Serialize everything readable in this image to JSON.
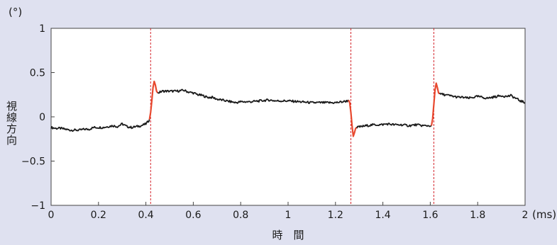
{
  "chart_data": {
    "type": "line",
    "title": "",
    "xlabel": "時　間",
    "ylabel": "視線方向",
    "y_unit": "(°)",
    "x_unit": "(ms)",
    "xlim": [
      0,
      2
    ],
    "ylim": [
      -1,
      1
    ],
    "x_ticks": [
      {
        "v": 0,
        "t": "0"
      },
      {
        "v": 0.2,
        "t": "0.2"
      },
      {
        "v": 0.4,
        "t": "0.4"
      },
      {
        "v": 0.6,
        "t": "0.6"
      },
      {
        "v": 0.8,
        "t": "0.8"
      },
      {
        "v": 1,
        "t": "1"
      },
      {
        "v": 1.2,
        "t": "1.2"
      },
      {
        "v": 1.4,
        "t": "1.4"
      },
      {
        "v": 1.6,
        "t": "1.6"
      },
      {
        "v": 1.8,
        "t": "1.8"
      },
      {
        "v": 2,
        "t": "2"
      }
    ],
    "y_ticks": [
      {
        "v": 1,
        "t": "1"
      },
      {
        "v": 0.5,
        "t": "0.5"
      },
      {
        "v": 0,
        "t": "0"
      },
      {
        "v": -0.5,
        "t": "−0.5"
      },
      {
        "v": -1,
        "t": "−1"
      }
    ],
    "grid": false,
    "markers": [
      0.42,
      1.265,
      1.615
    ],
    "colors": {
      "trace": "#1a1a1a",
      "saccade": "#e8492f",
      "marker": "#d4242b",
      "background": "#dfe1f0",
      "plot": "#ffffff"
    },
    "series": [
      {
        "segment": "fixation",
        "color": "#1a1a1a",
        "points": [
          [
            0.0,
            -0.12
          ],
          [
            0.02,
            -0.13
          ],
          [
            0.04,
            -0.13
          ],
          [
            0.06,
            -0.14
          ],
          [
            0.08,
            -0.15
          ],
          [
            0.1,
            -0.15
          ],
          [
            0.12,
            -0.15
          ],
          [
            0.14,
            -0.14
          ],
          [
            0.16,
            -0.14
          ],
          [
            0.18,
            -0.12
          ],
          [
            0.2,
            -0.12
          ],
          [
            0.22,
            -0.12
          ],
          [
            0.24,
            -0.11
          ],
          [
            0.26,
            -0.1
          ],
          [
            0.28,
            -0.11
          ],
          [
            0.3,
            -0.08
          ],
          [
            0.32,
            -0.11
          ],
          [
            0.34,
            -0.12
          ],
          [
            0.36,
            -0.11
          ],
          [
            0.38,
            -0.1
          ],
          [
            0.4,
            -0.08
          ],
          [
            0.41,
            -0.05
          ],
          [
            0.415,
            -0.03
          ]
        ]
      },
      {
        "segment": "saccade",
        "color": "#e8492f",
        "points": [
          [
            0.415,
            -0.03
          ],
          [
            0.42,
            0.05
          ],
          [
            0.425,
            0.18
          ],
          [
            0.43,
            0.33
          ],
          [
            0.435,
            0.4
          ],
          [
            0.44,
            0.36
          ],
          [
            0.445,
            0.29
          ],
          [
            0.45,
            0.27
          ]
        ]
      },
      {
        "segment": "fixation",
        "color": "#1a1a1a",
        "points": [
          [
            0.45,
            0.27
          ],
          [
            0.47,
            0.29
          ],
          [
            0.5,
            0.29
          ],
          [
            0.53,
            0.29
          ],
          [
            0.56,
            0.3
          ],
          [
            0.58,
            0.28
          ],
          [
            0.6,
            0.27
          ],
          [
            0.62,
            0.25
          ],
          [
            0.64,
            0.24
          ],
          [
            0.66,
            0.22
          ],
          [
            0.68,
            0.22
          ],
          [
            0.7,
            0.2
          ],
          [
            0.72,
            0.19
          ],
          [
            0.74,
            0.18
          ],
          [
            0.76,
            0.17
          ],
          [
            0.78,
            0.16
          ],
          [
            0.8,
            0.17
          ],
          [
            0.84,
            0.17
          ],
          [
            0.88,
            0.18
          ],
          [
            0.92,
            0.19
          ],
          [
            0.95,
            0.18
          ],
          [
            1.0,
            0.18
          ],
          [
            1.05,
            0.17
          ],
          [
            1.1,
            0.16
          ],
          [
            1.15,
            0.16
          ],
          [
            1.2,
            0.16
          ],
          [
            1.23,
            0.17
          ],
          [
            1.25,
            0.18
          ],
          [
            1.255,
            0.19
          ]
        ]
      },
      {
        "segment": "saccade",
        "color": "#e8492f",
        "points": [
          [
            1.255,
            0.19
          ],
          [
            1.26,
            0.16
          ],
          [
            1.265,
            0.05
          ],
          [
            1.27,
            -0.1
          ],
          [
            1.275,
            -0.22
          ],
          [
            1.28,
            -0.18
          ],
          [
            1.285,
            -0.13
          ],
          [
            1.29,
            -0.12
          ]
        ]
      },
      {
        "segment": "fixation",
        "color": "#1a1a1a",
        "points": [
          [
            1.29,
            -0.12
          ],
          [
            1.31,
            -0.11
          ],
          [
            1.33,
            -0.1
          ],
          [
            1.36,
            -0.09
          ],
          [
            1.39,
            -0.09
          ],
          [
            1.42,
            -0.08
          ],
          [
            1.45,
            -0.09
          ],
          [
            1.48,
            -0.09
          ],
          [
            1.51,
            -0.1
          ],
          [
            1.54,
            -0.09
          ],
          [
            1.57,
            -0.1
          ],
          [
            1.59,
            -0.1
          ],
          [
            1.605,
            -0.1
          ]
        ]
      },
      {
        "segment": "saccade",
        "color": "#e8492f",
        "points": [
          [
            1.605,
            -0.1
          ],
          [
            1.61,
            -0.02
          ],
          [
            1.615,
            0.14
          ],
          [
            1.62,
            0.3
          ],
          [
            1.625,
            0.38
          ],
          [
            1.63,
            0.33
          ],
          [
            1.635,
            0.27
          ],
          [
            1.64,
            0.26
          ]
        ]
      },
      {
        "segment": "fixation",
        "color": "#1a1a1a",
        "points": [
          [
            1.64,
            0.26
          ],
          [
            1.66,
            0.25
          ],
          [
            1.68,
            0.24
          ],
          [
            1.7,
            0.23
          ],
          [
            1.72,
            0.22
          ],
          [
            1.74,
            0.22
          ],
          [
            1.76,
            0.21
          ],
          [
            1.78,
            0.22
          ],
          [
            1.8,
            0.23
          ],
          [
            1.82,
            0.22
          ],
          [
            1.84,
            0.21
          ],
          [
            1.86,
            0.22
          ],
          [
            1.88,
            0.23
          ],
          [
            1.9,
            0.24
          ],
          [
            1.92,
            0.23
          ],
          [
            1.94,
            0.24
          ],
          [
            1.96,
            0.21
          ],
          [
            1.98,
            0.18
          ],
          [
            2.0,
            0.16
          ]
        ]
      }
    ]
  }
}
